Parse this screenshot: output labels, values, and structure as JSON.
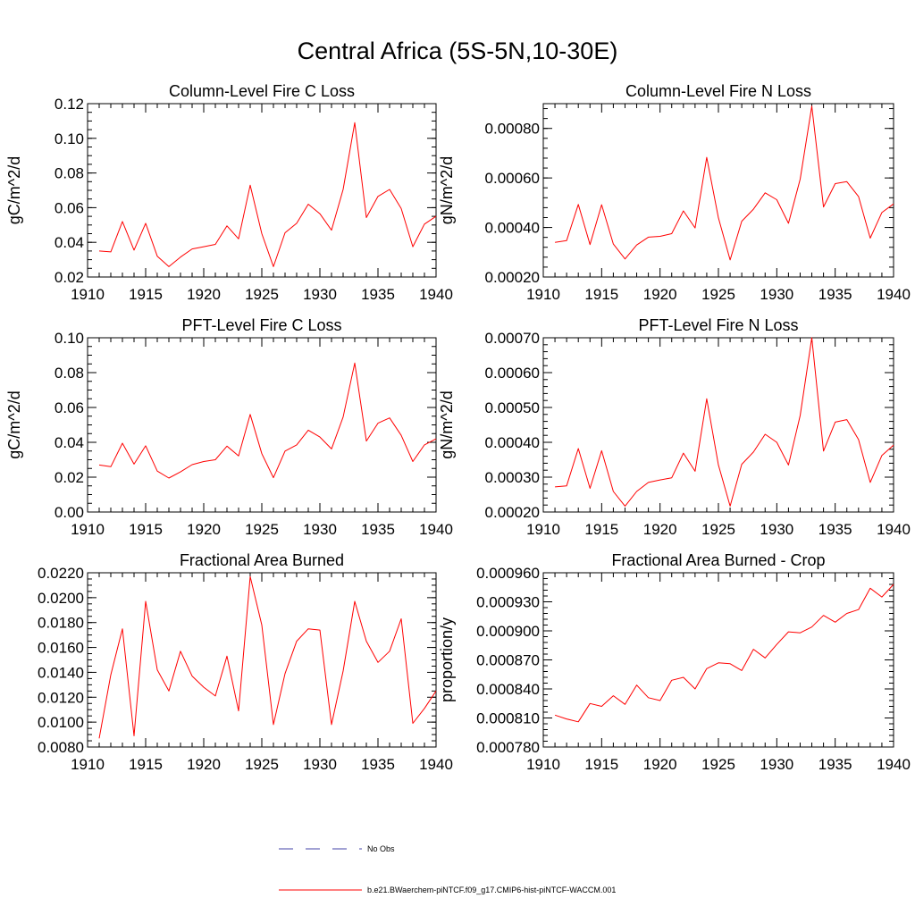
{
  "figure": {
    "title": "Central Africa (5S-5N,10-30E)"
  },
  "chart_data": [
    {
      "type": "line",
      "title": "Column-Level Fire C Loss",
      "xlabel": "",
      "ylabel": "gC/m^2/d",
      "xlim": [
        1910,
        1940
      ],
      "ylim": [
        0.02,
        0.12
      ],
      "xticks": [
        1910,
        1915,
        1920,
        1925,
        1930,
        1935,
        1940
      ],
      "yticks": [
        0.02,
        0.04,
        0.06,
        0.08,
        0.1,
        0.12
      ],
      "ytick_labels": [
        "0.02",
        "0.04",
        "0.06",
        "0.08",
        "0.10",
        "0.12"
      ],
      "y_minor_step": 0.005,
      "x": [
        1911,
        1912,
        1913,
        1914,
        1915,
        1916,
        1917,
        1918,
        1919,
        1920,
        1921,
        1922,
        1923,
        1924,
        1925,
        1926,
        1927,
        1928,
        1929,
        1930,
        1931,
        1932,
        1933,
        1934,
        1935,
        1936,
        1937,
        1938,
        1939,
        1940
      ],
      "series": [
        {
          "name": "b.e21.BWaerchem-piNTCF.f09_g17.CMIP6-hist-piNTCF-WACCM.001",
          "color": "#ff0000",
          "values": [
            0.035,
            0.0345,
            0.052,
            0.0355,
            0.051,
            0.032,
            0.026,
            0.0315,
            0.0362,
            0.0375,
            0.0388,
            0.0495,
            0.042,
            0.073,
            0.045,
            0.026,
            0.0455,
            0.051,
            0.062,
            0.0565,
            0.047,
            0.0705,
            0.109,
            0.0543,
            0.0665,
            0.0705,
            0.0595,
            0.0375,
            0.0505,
            0.055
          ]
        }
      ]
    },
    {
      "type": "line",
      "title": "Column-Level Fire N Loss",
      "xlabel": "",
      "ylabel": "gN/m^2/d",
      "xlim": [
        1910,
        1940
      ],
      "ylim": [
        0.0002,
        0.0009
      ],
      "xticks": [
        1910,
        1915,
        1920,
        1925,
        1930,
        1935,
        1940
      ],
      "yticks": [
        0.0002,
        0.0004,
        0.0006,
        0.0008
      ],
      "ytick_labels": [
        "0.00020",
        "0.00040",
        "0.00060",
        "0.00080"
      ],
      "y_minor_step": 4e-05,
      "x": [
        1911,
        1912,
        1913,
        1914,
        1915,
        1916,
        1917,
        1918,
        1919,
        1920,
        1921,
        1922,
        1923,
        1924,
        1925,
        1926,
        1927,
        1928,
        1929,
        1930,
        1931,
        1932,
        1933,
        1934,
        1935,
        1936,
        1937,
        1938,
        1939,
        1940
      ],
      "series": [
        {
          "name": "b.e21.BWaerchem-piNTCF.f09_g17.CMIP6-hist-piNTCF-WACCM.001",
          "color": "#ff0000",
          "values": [
            0.00034,
            0.000347,
            0.000493,
            0.000331,
            0.000492,
            0.000333,
            0.000273,
            0.000329,
            0.000361,
            0.000364,
            0.000375,
            0.000467,
            0.000398,
            0.000683,
            0.000439,
            0.000269,
            0.000425,
            0.000474,
            0.00054,
            0.000512,
            0.000417,
            0.000595,
            0.00089,
            0.000483,
            0.000577,
            0.000585,
            0.000525,
            0.000357,
            0.00046,
            0.000495
          ]
        }
      ]
    },
    {
      "type": "line",
      "title": "PFT-Level Fire C Loss",
      "xlabel": "",
      "ylabel": "gC/m^2/d",
      "xlim": [
        1910,
        1940
      ],
      "ylim": [
        0.0,
        0.1
      ],
      "xticks": [
        1910,
        1915,
        1920,
        1925,
        1930,
        1935,
        1940
      ],
      "yticks": [
        0.0,
        0.02,
        0.04,
        0.06,
        0.08,
        0.1
      ],
      "ytick_labels": [
        "0.00",
        "0.02",
        "0.04",
        "0.06",
        "0.08",
        "0.10"
      ],
      "y_minor_step": 0.005,
      "x": [
        1911,
        1912,
        1913,
        1914,
        1915,
        1916,
        1917,
        1918,
        1919,
        1920,
        1921,
        1922,
        1923,
        1924,
        1925,
        1926,
        1927,
        1928,
        1929,
        1930,
        1931,
        1932,
        1933,
        1934,
        1935,
        1936,
        1937,
        1938,
        1939,
        1940
      ],
      "series": [
        {
          "name": "b.e21.BWaerchem-piNTCF.f09_g17.CMIP6-hist-piNTCF-WACCM.001",
          "color": "#ff0000",
          "values": [
            0.027,
            0.026,
            0.0395,
            0.0275,
            0.038,
            0.0235,
            0.0195,
            0.023,
            0.0272,
            0.029,
            0.03,
            0.0378,
            0.0322,
            0.056,
            0.0335,
            0.0197,
            0.035,
            0.0385,
            0.047,
            0.043,
            0.0362,
            0.0545,
            0.0855,
            0.0407,
            0.051,
            0.054,
            0.044,
            0.029,
            0.0385,
            0.042
          ]
        }
      ]
    },
    {
      "type": "line",
      "title": "PFT-Level Fire N Loss",
      "xlabel": "",
      "ylabel": "gN/m^2/d",
      "xlim": [
        1910,
        1940
      ],
      "ylim": [
        0.0002,
        0.0007
      ],
      "xticks": [
        1910,
        1915,
        1920,
        1925,
        1930,
        1935,
        1940
      ],
      "yticks": [
        0.0002,
        0.0003,
        0.0004,
        0.0005,
        0.0006,
        0.0007
      ],
      "ytick_labels": [
        "0.00020",
        "0.00030",
        "0.00040",
        "0.00050",
        "0.00060",
        "0.00070"
      ],
      "y_minor_step": 2e-05,
      "x": [
        1911,
        1912,
        1913,
        1914,
        1915,
        1916,
        1917,
        1918,
        1919,
        1920,
        1921,
        1922,
        1923,
        1924,
        1925,
        1926,
        1927,
        1928,
        1929,
        1930,
        1931,
        1932,
        1933,
        1934,
        1935,
        1936,
        1937,
        1938,
        1939,
        1940
      ],
      "series": [
        {
          "name": "b.e21.BWaerchem-piNTCF.f09_g17.CMIP6-hist-piNTCF-WACCM.001",
          "color": "#ff0000",
          "values": [
            0.000272,
            0.000275,
            0.000382,
            0.000268,
            0.000376,
            0.000259,
            0.000217,
            0.000259,
            0.000285,
            0.000292,
            0.000298,
            0.000369,
            0.000317,
            0.000525,
            0.000335,
            0.000217,
            0.000337,
            0.000372,
            0.000423,
            0.0004,
            0.000335,
            0.000477,
            0.0007,
            0.000375,
            0.000458,
            0.000465,
            0.000408,
            0.000285,
            0.000362,
            0.000392
          ]
        }
      ]
    },
    {
      "type": "line",
      "title": "Fractional Area Burned",
      "xlabel": "",
      "ylabel": "",
      "xlim": [
        1910,
        1940
      ],
      "ylim": [
        0.008,
        0.022
      ],
      "xticks": [
        1910,
        1915,
        1920,
        1925,
        1930,
        1935,
        1940
      ],
      "yticks": [
        0.008,
        0.01,
        0.012,
        0.014,
        0.016,
        0.018,
        0.02,
        0.022
      ],
      "ytick_labels": [
        "0.0080",
        "0.0100",
        "0.0120",
        "0.0140",
        "0.0160",
        "0.0180",
        "0.0200",
        "0.0220"
      ],
      "y_minor_step": 0.0005,
      "x": [
        1911,
        1912,
        1913,
        1914,
        1915,
        1916,
        1917,
        1918,
        1919,
        1920,
        1921,
        1922,
        1923,
        1924,
        1925,
        1926,
        1927,
        1928,
        1929,
        1930,
        1931,
        1932,
        1933,
        1934,
        1935,
        1936,
        1937,
        1938,
        1939,
        1940
      ],
      "series": [
        {
          "name": "b.e21.BWaerchem-piNTCF.f09_g17.CMIP6-hist-piNTCF-WACCM.001",
          "color": "#ff0000",
          "values": [
            0.0087,
            0.0138,
            0.0175,
            0.0089,
            0.0197,
            0.0142,
            0.0125,
            0.0157,
            0.0137,
            0.0128,
            0.0121,
            0.0153,
            0.0109,
            0.0217,
            0.0178,
            0.0098,
            0.0139,
            0.0165,
            0.0175,
            0.0174,
            0.0098,
            0.0141,
            0.0197,
            0.0165,
            0.0148,
            0.0157,
            0.0183,
            0.0099,
            0.0111,
            0.0125
          ]
        }
      ]
    },
    {
      "type": "line",
      "title": "Fractional Area Burned - Crop",
      "xlabel": "",
      "ylabel": "proportion/y",
      "xlim": [
        1910,
        1940
      ],
      "ylim": [
        0.00078,
        0.00096
      ],
      "xticks": [
        1910,
        1915,
        1920,
        1925,
        1930,
        1935,
        1940
      ],
      "yticks": [
        0.00078,
        0.00081,
        0.00084,
        0.00087,
        0.0009,
        0.00093,
        0.00096
      ],
      "ytick_labels": [
        "0.000780",
        "0.000810",
        "0.000840",
        "0.000870",
        "0.000900",
        "0.000930",
        "0.000960"
      ],
      "y_minor_step": 6e-06,
      "x": [
        1911,
        1912,
        1913,
        1914,
        1915,
        1916,
        1917,
        1918,
        1919,
        1920,
        1921,
        1922,
        1923,
        1924,
        1925,
        1926,
        1927,
        1928,
        1929,
        1930,
        1931,
        1932,
        1933,
        1934,
        1935,
        1936,
        1937,
        1938,
        1939,
        1940
      ],
      "series": [
        {
          "name": "b.e21.BWaerchem-piNTCF.f09_g17.CMIP6-hist-piNTCF-WACCM.001",
          "color": "#ff0000",
          "values": [
            0.000813,
            0.000809,
            0.000806,
            0.000825,
            0.000822,
            0.000833,
            0.000824,
            0.000844,
            0.000831,
            0.000828,
            0.000849,
            0.000852,
            0.00084,
            0.000861,
            0.000867,
            0.000866,
            0.000859,
            0.000881,
            0.000872,
            0.000886,
            0.000899,
            0.000898,
            0.000904,
            0.000916,
            0.000909,
            0.000918,
            0.000922,
            0.000944,
            0.000935,
            0.000948
          ]
        }
      ]
    }
  ],
  "legend": {
    "entries": [
      {
        "label": "No Obs",
        "color": "#4444aa",
        "style": "dashed"
      },
      {
        "label": "b.e21.BWaerchem-piNTCF.f09_g17.CMIP6-hist-piNTCF-WACCM.001",
        "color": "#ff0000",
        "style": "solid"
      }
    ]
  }
}
